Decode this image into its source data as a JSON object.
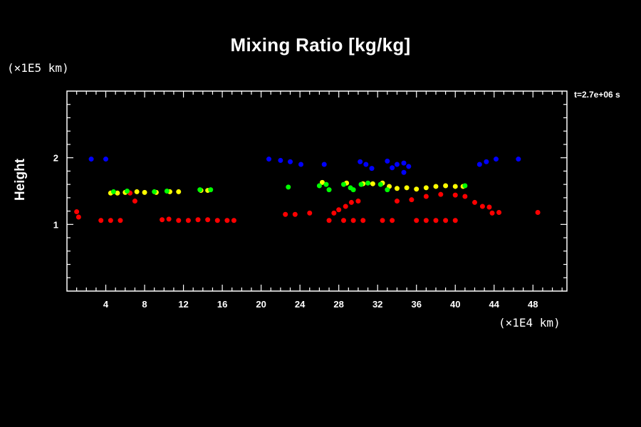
{
  "chart_data": {
    "type": "scatter",
    "title": "Mixing Ratio [kg/kg]",
    "ylabel": "Height",
    "y_unit": "(×1E5 km)",
    "x_unit": "(×1E4 km)",
    "time_label": "t=2.7e+06 s",
    "xlim": [
      0,
      51.5
    ],
    "ylim": [
      0,
      3.0
    ],
    "x_ticks": [
      "4",
      "8",
      "12",
      "16",
      "20",
      "24",
      "28",
      "32",
      "36",
      "40",
      "44",
      "48"
    ],
    "y_ticks": [
      "1",
      "2"
    ],
    "colors": {
      "background": "#000000",
      "red": "#ff0000",
      "yellow": "#ffff00",
      "green": "#00ff00",
      "blue": "#0000ff"
    },
    "series": [
      {
        "color": "#ff0000",
        "points": [
          [
            1.0,
            1.19
          ],
          [
            1.2,
            1.11
          ],
          [
            3.5,
            1.06
          ],
          [
            4.5,
            1.06
          ],
          [
            5.5,
            1.06
          ],
          [
            6.5,
            1.47
          ],
          [
            7,
            1.35
          ],
          [
            9.8,
            1.07
          ],
          [
            10.5,
            1.08
          ],
          [
            11.5,
            1.06
          ],
          [
            12.5,
            1.06
          ],
          [
            13.5,
            1.07
          ],
          [
            14.5,
            1.07
          ],
          [
            15.5,
            1.06
          ],
          [
            16.5,
            1.06
          ],
          [
            17.2,
            1.06
          ],
          [
            22.5,
            1.15
          ],
          [
            23.5,
            1.15
          ],
          [
            25,
            1.17
          ],
          [
            27.5,
            1.17
          ],
          [
            28,
            1.22
          ],
          [
            28.7,
            1.27
          ],
          [
            29.3,
            1.33
          ],
          [
            30,
            1.35
          ],
          [
            27,
            1.06
          ],
          [
            28.5,
            1.06
          ],
          [
            29.5,
            1.06
          ],
          [
            30.5,
            1.06
          ],
          [
            32.5,
            1.06
          ],
          [
            33.5,
            1.06
          ],
          [
            36,
            1.06
          ],
          [
            37,
            1.06
          ],
          [
            38,
            1.06
          ],
          [
            39,
            1.06
          ],
          [
            40,
            1.06
          ],
          [
            34,
            1.35
          ],
          [
            35.5,
            1.37
          ],
          [
            37,
            1.42
          ],
          [
            38.5,
            1.45
          ],
          [
            40,
            1.44
          ],
          [
            41,
            1.42
          ],
          [
            42,
            1.33
          ],
          [
            42.8,
            1.27
          ],
          [
            43.5,
            1.26
          ],
          [
            44.5,
            1.18
          ],
          [
            43.8,
            1.17
          ],
          [
            48.5,
            1.18
          ]
        ]
      },
      {
        "color": "#ffff00",
        "points": [
          [
            4.5,
            1.47
          ],
          [
            5.2,
            1.47
          ],
          [
            6,
            1.48
          ],
          [
            7.2,
            1.49
          ],
          [
            8,
            1.48
          ],
          [
            9.2,
            1.48
          ],
          [
            10.6,
            1.49
          ],
          [
            11.5,
            1.49
          ],
          [
            13.8,
            1.51
          ],
          [
            14.5,
            1.51
          ],
          [
            26.3,
            1.63
          ],
          [
            28.8,
            1.62
          ],
          [
            30.5,
            1.61
          ],
          [
            31.5,
            1.61
          ],
          [
            32.5,
            1.62
          ],
          [
            33.2,
            1.57
          ],
          [
            34,
            1.54
          ],
          [
            35,
            1.55
          ],
          [
            36,
            1.53
          ],
          [
            37,
            1.55
          ],
          [
            38,
            1.57
          ],
          [
            39,
            1.58
          ],
          [
            40,
            1.57
          ],
          [
            40.8,
            1.57
          ]
        ]
      },
      {
        "color": "#00ff00",
        "points": [
          [
            4.8,
            1.49
          ],
          [
            6.2,
            1.5
          ],
          [
            9,
            1.49
          ],
          [
            10.3,
            1.5
          ],
          [
            13.7,
            1.52
          ],
          [
            14.8,
            1.52
          ],
          [
            22.8,
            1.56
          ],
          [
            26,
            1.58
          ],
          [
            26.7,
            1.6
          ],
          [
            27,
            1.52
          ],
          [
            28.5,
            1.6
          ],
          [
            29.2,
            1.55
          ],
          [
            29.5,
            1.52
          ],
          [
            30.3,
            1.6
          ],
          [
            31,
            1.62
          ],
          [
            32.3,
            1.6
          ],
          [
            33,
            1.52
          ],
          [
            41,
            1.58
          ]
        ]
      },
      {
        "color": "#0000ff",
        "points": [
          [
            2.5,
            1.98
          ],
          [
            4,
            1.98
          ],
          [
            20.8,
            1.98
          ],
          [
            22,
            1.96
          ],
          [
            23,
            1.94
          ],
          [
            24.1,
            1.9
          ],
          [
            26.5,
            1.9
          ],
          [
            30.2,
            1.94
          ],
          [
            30.8,
            1.9
          ],
          [
            31.4,
            1.84
          ],
          [
            33,
            1.95
          ],
          [
            33.5,
            1.85
          ],
          [
            34,
            1.9
          ],
          [
            34.7,
            1.92
          ],
          [
            35.2,
            1.87
          ],
          [
            34.7,
            1.78
          ],
          [
            42.5,
            1.9
          ],
          [
            43.2,
            1.94
          ],
          [
            44.2,
            1.98
          ],
          [
            46.5,
            1.98
          ]
        ]
      }
    ]
  }
}
